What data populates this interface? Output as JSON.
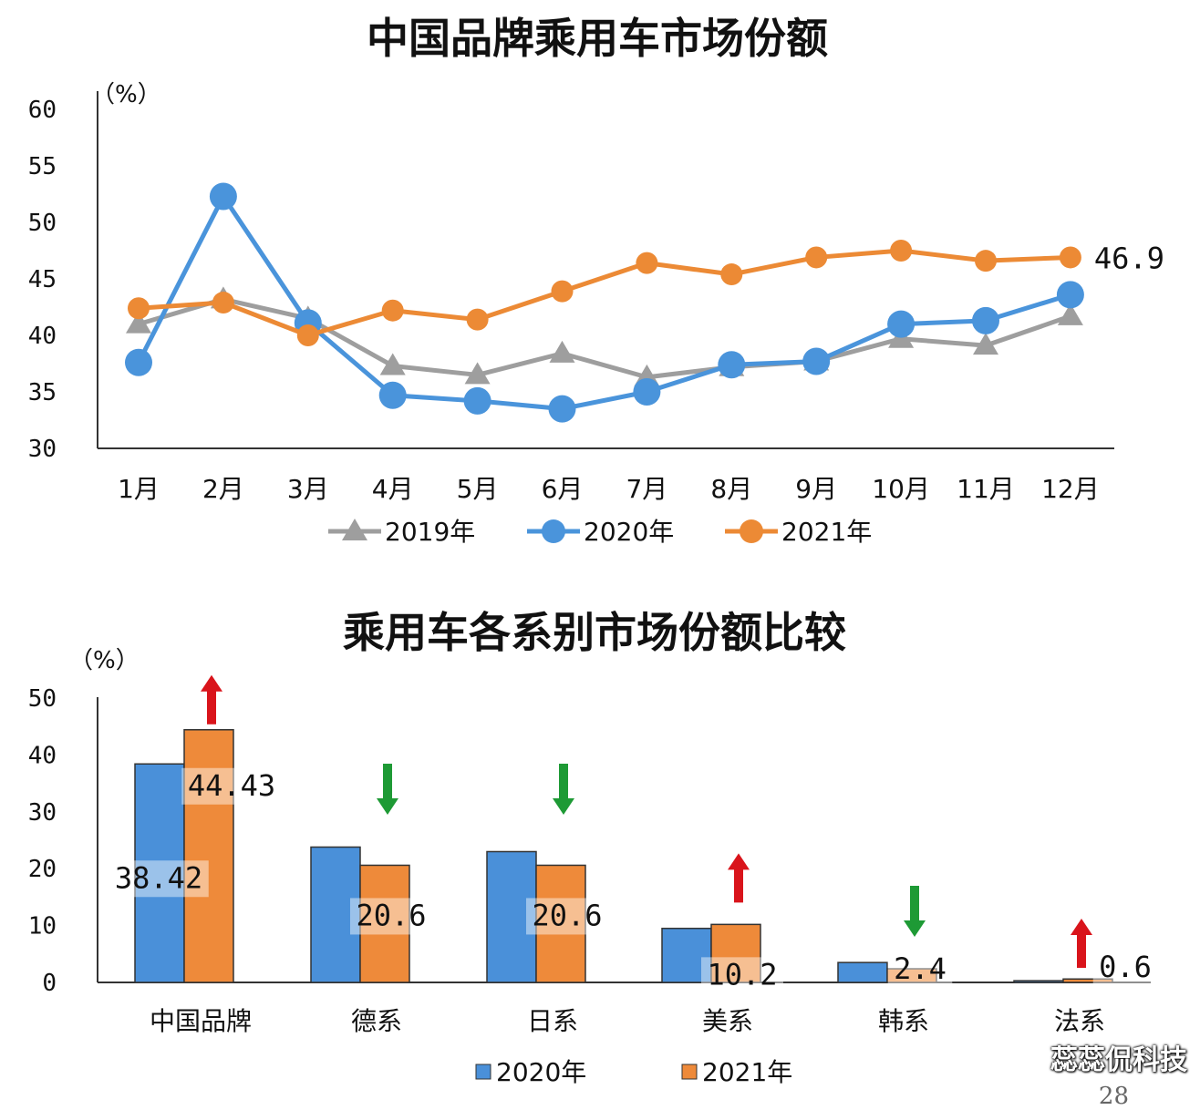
{
  "chart_data": [
    {
      "type": "line",
      "title": "中国品牌乘用车市场份额",
      "unit_label": "（%）",
      "categories": [
        "1月",
        "2月",
        "3月",
        "4月",
        "5月",
        "6月",
        "7月",
        "8月",
        "9月",
        "10月",
        "11月",
        "12月"
      ],
      "y_ticks": [
        "60",
        "55",
        "50",
        "45",
        "40",
        "35",
        "30"
      ],
      "ylim": [
        30,
        60
      ],
      "grid": false,
      "legend_position": "bottom",
      "series": [
        {
          "name": "2019年",
          "color": "#9e9e9e",
          "marker": "triangle",
          "values": [
            41.0,
            43.2,
            41.5,
            37.3,
            36.5,
            38.4,
            36.3,
            37.2,
            37.7,
            39.7,
            39.1,
            41.7
          ]
        },
        {
          "name": "2020年",
          "color": "#4a94db",
          "marker": "circle",
          "values": [
            37.6,
            52.3,
            41.1,
            34.7,
            34.2,
            33.5,
            35.0,
            37.4,
            37.7,
            41.0,
            41.3,
            43.6
          ]
        },
        {
          "name": "2021年",
          "color": "#ec8a35",
          "marker": "circle",
          "values": [
            42.4,
            42.9,
            40.0,
            42.2,
            41.4,
            43.9,
            46.4,
            45.4,
            46.9,
            47.5,
            46.6,
            46.9
          ]
        }
      ],
      "annotations": [
        {
          "series": "2021年",
          "index": 11,
          "text": "46.9"
        }
      ]
    },
    {
      "type": "bar",
      "title": "乘用车各系别市场份额比较",
      "unit_label": "（%）",
      "categories": [
        "中国品牌",
        "德系",
        "日系",
        "美系",
        "韩系",
        "法系"
      ],
      "y_ticks": [
        "50",
        "40",
        "30",
        "20",
        "10",
        "0"
      ],
      "ylim": [
        0,
        50
      ],
      "legend_position": "bottom",
      "series": [
        {
          "name": "2020年",
          "color": "#4a90d9",
          "values": [
            38.42,
            23.8,
            23.0,
            9.5,
            3.5,
            0.3
          ],
          "labels": [
            "38.42",
            "",
            "",
            "",
            "",
            ""
          ]
        },
        {
          "name": "2021年",
          "color": "#ee8a3a",
          "values": [
            44.43,
            20.6,
            20.6,
            10.2,
            2.4,
            0.6
          ],
          "labels": [
            "44.43",
            "20.6",
            "20.6",
            "10.2",
            "2.4",
            "0.6"
          ]
        }
      ],
      "trend_arrows": [
        "up",
        "down",
        "down",
        "up",
        "down",
        "up"
      ],
      "arrow_colors": {
        "up": "#d9141b",
        "down": "#1e9a35"
      }
    }
  ],
  "watermark": "蕊蕊侃科技",
  "page_number": "28"
}
